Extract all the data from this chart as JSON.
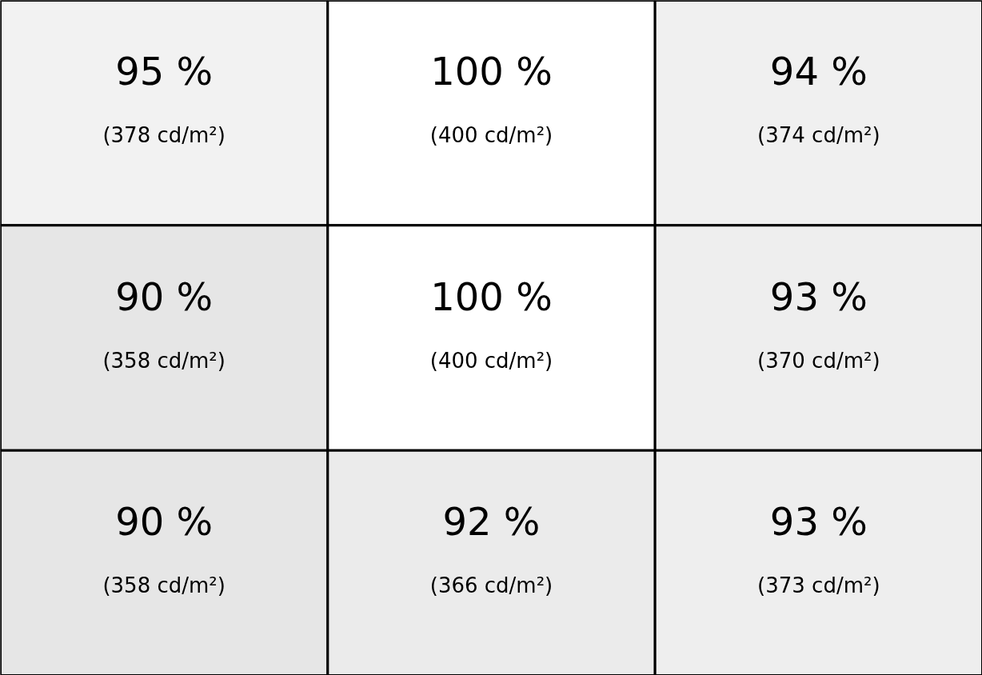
{
  "chart_data": {
    "type": "heatmap",
    "categories": [
      null,
      null,
      null
    ],
    "y_categories": [
      null,
      null,
      null
    ],
    "cells": [
      [
        95,
        100,
        94
      ],
      [
        90,
        100,
        93
      ],
      [
        90,
        92,
        93
      ]
    ],
    "cell_labels": [
      [
        "95 %",
        "100 %",
        "94 %"
      ],
      [
        "90 %",
        "100 %",
        "93 %"
      ],
      [
        "90 %",
        "92 %",
        "93 %"
      ]
    ],
    "annotations": [
      "(378 cd/m²)",
      "(400 cd/m²)",
      "(374 cd/m²)",
      "(358 cd/m²)",
      "(400 cd/m²)",
      "(370 cd/m²)",
      "(358 cd/m²)",
      "(366 cd/m²)",
      "(373 cd/m²)"
    ],
    "tick_labels": false
  }
}
